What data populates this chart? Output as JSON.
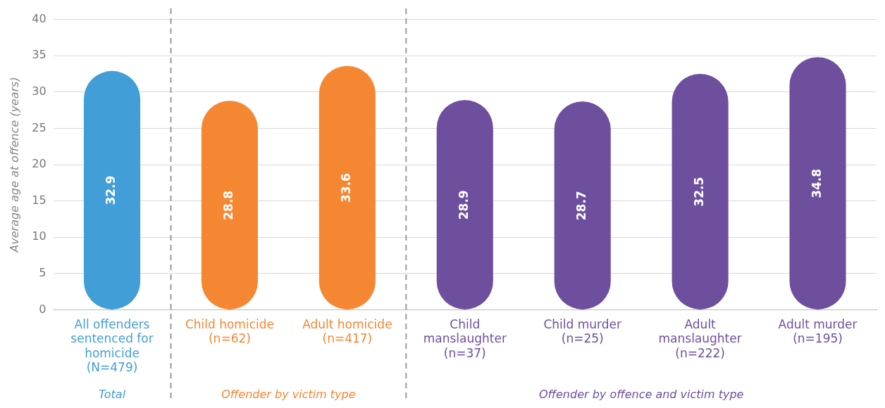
{
  "chart_data": {
    "type": "bar",
    "ylabel": "Average age at offence (years)",
    "categories": [
      "All offenders sentenced for homicide (N=479)",
      "Child homicide (n=62)",
      "Adult homicide (n=417)",
      "Child manslaughter (n=37)",
      "Child murder (n=25)",
      "Adult manslaughter (n=222)",
      "Adult murder (n=195)"
    ],
    "values": [
      32.9,
      28.8,
      33.6,
      28.9,
      28.7,
      32.5,
      34.8
    ],
    "colors": [
      "#429ed6",
      "#f58733",
      "#f58733",
      "#6e4f9e",
      "#6e4f9e",
      "#6e4f9e",
      "#6e4f9e"
    ],
    "ylim": [
      0,
      40
    ],
    "yticks": [
      0,
      5,
      10,
      15,
      20,
      25,
      30,
      35,
      40
    ],
    "grid": "y",
    "legend": false,
    "data_labels": true,
    "annotations": [
      "Total",
      "Offender by victim type",
      "Offender by offence and victim type"
    ]
  }
}
